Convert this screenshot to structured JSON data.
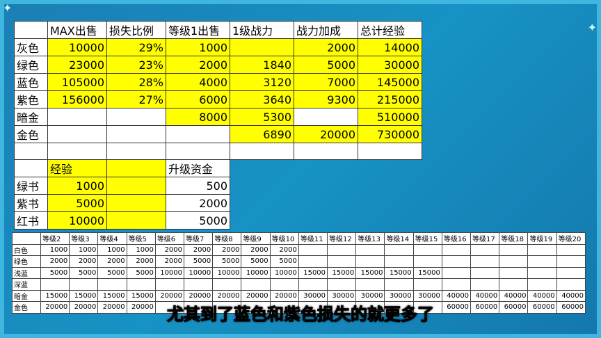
{
  "main_table": {
    "headers": [
      "",
      "MAX出售",
      "损失比例",
      "等级1出售",
      "1级战力",
      "战力加成",
      "总计经验"
    ],
    "rows": [
      {
        "label": "灰色",
        "cells": [
          "10000",
          "29%",
          "1000",
          "",
          "2000",
          "14000"
        ],
        "yellow": [
          1,
          1,
          1,
          1,
          1,
          1
        ]
      },
      {
        "label": "绿色",
        "cells": [
          "23000",
          "23%",
          "2000",
          "1840",
          "5000",
          "30000"
        ],
        "yellow": [
          1,
          1,
          1,
          1,
          1,
          1
        ]
      },
      {
        "label": "蓝色",
        "cells": [
          "105000",
          "28%",
          "4000",
          "3120",
          "7000",
          "145000"
        ],
        "yellow": [
          1,
          1,
          1,
          1,
          1,
          1
        ]
      },
      {
        "label": "紫色",
        "cells": [
          "156000",
          "27%",
          "6000",
          "3640",
          "9300",
          "215000"
        ],
        "yellow": [
          1,
          1,
          1,
          1,
          1,
          1
        ]
      },
      {
        "label": "暗金",
        "cells": [
          "",
          "",
          "8000",
          "5300",
          "",
          "510000"
        ],
        "yellow": [
          0,
          0,
          1,
          1,
          0,
          1
        ]
      },
      {
        "label": "金色",
        "cells": [
          "",
          "",
          "",
          "6890",
          "20000",
          "730000"
        ],
        "yellow": [
          0,
          0,
          0,
          1,
          1,
          1
        ]
      },
      {
        "label": "",
        "cells": [
          "",
          "",
          "",
          "",
          "",
          ""
        ],
        "yellow": [
          0,
          0,
          0,
          0,
          0,
          0
        ]
      }
    ]
  },
  "book_table": {
    "headers": [
      "",
      "经验",
      "",
      "升级资金"
    ],
    "rows": [
      {
        "label": "绿书",
        "exp": "1000",
        "fund": "500"
      },
      {
        "label": "紫书",
        "exp": "5000",
        "fund": "2000"
      },
      {
        "label": "红书",
        "exp": "10000",
        "fund": "5000"
      }
    ]
  },
  "level_table": {
    "headers": [
      "",
      "等级2",
      "等级3",
      "等级4",
      "等级5",
      "等级6",
      "等级7",
      "等级8",
      "等级9",
      "等级10",
      "等级11",
      "等级12",
      "等级13",
      "等级14",
      "等级15",
      "等级16",
      "等级17",
      "等级18",
      "等级19",
      "等级20"
    ],
    "rows": [
      {
        "label": "白色",
        "cells": [
          "1000",
          "1000",
          "1000",
          "1000",
          "2000",
          "2000",
          "2000",
          "2000",
          "2000",
          "",
          "",
          "",
          "",
          "",
          "",
          "",
          "",
          "",
          ""
        ]
      },
      {
        "label": "绿色",
        "cells": [
          "2000",
          "2000",
          "2000",
          "2000",
          "2000",
          "5000",
          "5000",
          "5000",
          "5000",
          "",
          "",
          "",
          "",
          "",
          "",
          "",
          "",
          "",
          ""
        ]
      },
      {
        "label": "浅蓝",
        "cells": [
          "5000",
          "5000",
          "5000",
          "5000",
          "10000",
          "10000",
          "10000",
          "10000",
          "10000",
          "15000",
          "15000",
          "15000",
          "15000",
          "15000",
          "",
          "",
          "",
          "",
          ""
        ]
      },
      {
        "label": "深蓝",
        "cells": [
          "",
          "",
          "",
          "",
          "",
          "",
          "",
          "",
          "",
          "",
          "",
          "",
          "",
          "",
          "",
          "",
          "",
          "",
          ""
        ]
      },
      {
        "label": "暗金",
        "cells": [
          "15000",
          "15000",
          "15000",
          "15000",
          "20000",
          "20000",
          "20000",
          "20000",
          "20000",
          "30000",
          "30000",
          "30000",
          "30000",
          "30000",
          "40000",
          "40000",
          "40000",
          "40000",
          "40000"
        ]
      },
      {
        "label": "金色",
        "cells": [
          "20000",
          "20000",
          "20000",
          "20000",
          "",
          "",
          "",
          "",
          "",
          "",
          "",
          "",
          "",
          "",
          "60000",
          "60000",
          "60000",
          "60000",
          "60000"
        ]
      }
    ]
  },
  "subtitle": "尤其到了蓝色和紫色损失的就更多了",
  "colors": {
    "yellow": "#ffff00",
    "background": "#1584b8"
  }
}
